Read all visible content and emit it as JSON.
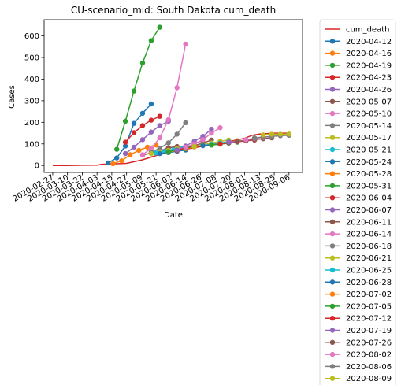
{
  "chart_data": {
    "type": "line",
    "title": "CU-scenario_mid: South Dakota cum_death",
    "xlabel": "Date",
    "ylabel": "Cases",
    "x_range": [
      "2020-02-20",
      "2020-09-17"
    ],
    "ylim": [
      -32,
      675
    ],
    "yticks": [
      0,
      100,
      200,
      300,
      400,
      500,
      600
    ],
    "xticks": [
      "2020-02-27",
      "2020-03-10",
      "2020-03-22",
      "2020-04-03",
      "2020-04-15",
      "2020-04-27",
      "2020-05-09",
      "2020-05-21",
      "2020-06-02",
      "2020-06-14",
      "2020-06-26",
      "2020-07-08",
      "2020-07-20",
      "2020-08-01",
      "2020-08-13",
      "2020-08-25",
      "2020-09-06"
    ],
    "grid": false,
    "legend_position": "outside-right",
    "series": [
      {
        "name": "cum_death",
        "color": "#d62728",
        "marker": false,
        "points": [
          [
            "2020-02-27",
            0
          ],
          [
            "2020-03-10",
            0
          ],
          [
            "2020-03-22",
            1
          ],
          [
            "2020-04-03",
            2
          ],
          [
            "2020-04-07",
            6
          ],
          [
            "2020-04-15",
            7
          ],
          [
            "2020-04-27",
            10
          ],
          [
            "2020-05-09",
            25
          ],
          [
            "2020-05-21",
            46
          ],
          [
            "2020-06-02",
            63
          ],
          [
            "2020-06-14",
            75
          ],
          [
            "2020-06-26",
            87
          ],
          [
            "2020-07-08",
            99
          ],
          [
            "2020-07-20",
            112
          ],
          [
            "2020-08-01",
            126
          ],
          [
            "2020-08-07",
            140
          ],
          [
            "2020-08-13",
            146
          ],
          [
            "2020-08-25",
            150
          ],
          [
            "2020-09-06",
            150
          ]
        ]
      },
      {
        "name": "2020-04-12",
        "color": "#1f77b4",
        "marker": true,
        "points": [
          [
            "2020-04-12",
            12
          ],
          [
            "2020-04-19",
            35
          ],
          [
            "2020-04-26",
            90
          ],
          [
            "2020-05-03",
            195
          ],
          [
            "2020-05-10",
            242
          ],
          [
            "2020-05-17",
            285
          ]
        ]
      },
      {
        "name": "2020-04-16",
        "color": "#ff7f0e",
        "marker": true,
        "points": [
          [
            "2020-04-16",
            8
          ],
          [
            "2020-04-23",
            22
          ],
          [
            "2020-04-30",
            50
          ],
          [
            "2020-05-07",
            70
          ],
          [
            "2020-05-14",
            85
          ],
          [
            "2020-05-21",
            95
          ]
        ]
      },
      {
        "name": "2020-04-19",
        "color": "#2ca02c",
        "marker": true,
        "points": [
          [
            "2020-04-19",
            75
          ],
          [
            "2020-04-26",
            205
          ],
          [
            "2020-05-03",
            345
          ],
          [
            "2020-05-10",
            475
          ],
          [
            "2020-05-17",
            578
          ],
          [
            "2020-05-24",
            640
          ]
        ]
      },
      {
        "name": "2020-04-23",
        "color": "#d62728",
        "marker": true,
        "points": [
          [
            "2020-04-26",
            108
          ],
          [
            "2020-05-03",
            152
          ],
          [
            "2020-05-10",
            185
          ],
          [
            "2020-05-17",
            210
          ],
          [
            "2020-05-24",
            228
          ]
        ]
      },
      {
        "name": "2020-04-26",
        "color": "#9467bd",
        "marker": true,
        "points": [
          [
            "2020-04-26",
            55
          ],
          [
            "2020-05-03",
            85
          ],
          [
            "2020-05-10",
            120
          ],
          [
            "2020-05-17",
            155
          ],
          [
            "2020-05-24",
            185
          ],
          [
            "2020-05-31",
            205
          ]
        ]
      },
      {
        "name": "2020-05-07",
        "color": "#8c564b",
        "marker": true,
        "points": [
          [
            "2020-05-10",
            48
          ],
          [
            "2020-05-17",
            58
          ],
          [
            "2020-05-24",
            68
          ],
          [
            "2020-05-31",
            82
          ],
          [
            "2020-06-07",
            88
          ]
        ]
      },
      {
        "name": "2020-05-10",
        "color": "#e377c2",
        "marker": true,
        "points": [
          [
            "2020-05-10",
            50
          ],
          [
            "2020-05-17",
            80
          ],
          [
            "2020-05-24",
            128
          ],
          [
            "2020-05-31",
            212
          ],
          [
            "2020-06-07",
            360
          ],
          [
            "2020-06-14",
            562
          ]
        ]
      },
      {
        "name": "2020-05-14",
        "color": "#7f7f7f",
        "marker": true,
        "points": [
          [
            "2020-05-17",
            62
          ],
          [
            "2020-05-24",
            80
          ],
          [
            "2020-05-31",
            105
          ],
          [
            "2020-06-07",
            145
          ],
          [
            "2020-06-14",
            198
          ]
        ]
      },
      {
        "name": "2020-05-17",
        "color": "#bcbd22",
        "marker": true,
        "points": [
          [
            "2020-05-17",
            55
          ],
          [
            "2020-05-24",
            62
          ],
          [
            "2020-05-31",
            70
          ],
          [
            "2020-06-07",
            78
          ],
          [
            "2020-06-14",
            85
          ]
        ]
      },
      {
        "name": "2020-05-21",
        "color": "#17becf",
        "marker": true,
        "points": [
          [
            "2020-05-21",
            58
          ],
          [
            "2020-05-28",
            65
          ],
          [
            "2020-06-04",
            72
          ],
          [
            "2020-06-11",
            78
          ]
        ]
      },
      {
        "name": "2020-05-24",
        "color": "#1f77b4",
        "marker": true,
        "points": [
          [
            "2020-05-24",
            55
          ],
          [
            "2020-05-31",
            60
          ],
          [
            "2020-06-07",
            66
          ],
          [
            "2020-06-14",
            72
          ]
        ]
      },
      {
        "name": "2020-05-28",
        "color": "#ff7f0e",
        "marker": true,
        "points": [
          [
            "2020-05-31",
            62
          ],
          [
            "2020-06-07",
            70
          ],
          [
            "2020-06-14",
            78
          ],
          [
            "2020-06-21",
            86
          ]
        ]
      },
      {
        "name": "2020-05-31",
        "color": "#2ca02c",
        "marker": true,
        "points": [
          [
            "2020-05-31",
            64
          ],
          [
            "2020-06-07",
            72
          ],
          [
            "2020-06-14",
            80
          ],
          [
            "2020-06-21",
            90
          ]
        ]
      },
      {
        "name": "2020-06-04",
        "color": "#d62728",
        "marker": true,
        "points": [
          [
            "2020-06-07",
            70
          ],
          [
            "2020-06-14",
            82
          ],
          [
            "2020-06-21",
            100
          ],
          [
            "2020-06-28",
            118
          ]
        ]
      },
      {
        "name": "2020-06-07",
        "color": "#9467bd",
        "marker": true,
        "points": [
          [
            "2020-06-07",
            72
          ],
          [
            "2020-06-14",
            90
          ],
          [
            "2020-06-21",
            112
          ],
          [
            "2020-06-28",
            135
          ],
          [
            "2020-07-05",
            168
          ]
        ]
      },
      {
        "name": "2020-06-11",
        "color": "#8c564b",
        "marker": true,
        "points": [
          [
            "2020-06-14",
            82
          ],
          [
            "2020-06-21",
            92
          ],
          [
            "2020-06-28",
            104
          ],
          [
            "2020-07-05",
            118
          ]
        ]
      },
      {
        "name": "2020-06-14",
        "color": "#e377c2",
        "marker": true,
        "points": [
          [
            "2020-06-14",
            85
          ],
          [
            "2020-06-21",
            100
          ],
          [
            "2020-06-28",
            120
          ],
          [
            "2020-07-05",
            150
          ],
          [
            "2020-07-12",
            175
          ]
        ]
      },
      {
        "name": "2020-06-18",
        "color": "#7f7f7f",
        "marker": true,
        "points": [
          [
            "2020-06-21",
            88
          ],
          [
            "2020-06-28",
            96
          ],
          [
            "2020-07-05",
            104
          ],
          [
            "2020-07-12",
            110
          ]
        ]
      },
      {
        "name": "2020-06-21",
        "color": "#bcbd22",
        "marker": true,
        "points": [
          [
            "2020-06-21",
            88
          ],
          [
            "2020-06-28",
            96
          ],
          [
            "2020-07-05",
            104
          ],
          [
            "2020-07-12",
            112
          ],
          [
            "2020-07-19",
            118
          ]
        ]
      },
      {
        "name": "2020-06-25",
        "color": "#17becf",
        "marker": true,
        "points": [
          [
            "2020-06-28",
            92
          ],
          [
            "2020-07-05",
            98
          ],
          [
            "2020-07-12",
            104
          ],
          [
            "2020-07-19",
            110
          ]
        ]
      },
      {
        "name": "2020-06-28",
        "color": "#1f77b4",
        "marker": true,
        "points": [
          [
            "2020-06-28",
            92
          ],
          [
            "2020-07-05",
            96
          ],
          [
            "2020-07-12",
            100
          ],
          [
            "2020-07-19",
            104
          ]
        ]
      },
      {
        "name": "2020-07-02",
        "color": "#ff7f0e",
        "marker": true,
        "points": [
          [
            "2020-07-05",
            95
          ],
          [
            "2020-07-12",
            100
          ],
          [
            "2020-07-19",
            108
          ],
          [
            "2020-07-26",
            115
          ]
        ]
      },
      {
        "name": "2020-07-05",
        "color": "#2ca02c",
        "marker": true,
        "points": [
          [
            "2020-07-05",
            95
          ],
          [
            "2020-07-12",
            99
          ],
          [
            "2020-07-19",
            104
          ],
          [
            "2020-07-26",
            108
          ]
        ]
      },
      {
        "name": "2020-07-12",
        "color": "#d62728",
        "marker": true,
        "points": [
          [
            "2020-07-12",
            100
          ],
          [
            "2020-07-19",
            106
          ],
          [
            "2020-07-26",
            110
          ],
          [
            "2020-08-02",
            114
          ],
          [
            "2020-08-09",
            118
          ]
        ]
      },
      {
        "name": "2020-07-19",
        "color": "#9467bd",
        "marker": true,
        "points": [
          [
            "2020-07-19",
            108
          ],
          [
            "2020-07-26",
            112
          ],
          [
            "2020-08-02",
            116
          ],
          [
            "2020-08-09",
            120
          ]
        ]
      },
      {
        "name": "2020-07-26",
        "color": "#8c564b",
        "marker": true,
        "points": [
          [
            "2020-07-26",
            112
          ],
          [
            "2020-08-02",
            116
          ],
          [
            "2020-08-09",
            120
          ],
          [
            "2020-08-16",
            124
          ],
          [
            "2020-08-23",
            128
          ]
        ]
      },
      {
        "name": "2020-08-02",
        "color": "#e377c2",
        "marker": true,
        "points": [
          [
            "2020-08-02",
            120
          ],
          [
            "2020-08-09",
            126
          ],
          [
            "2020-08-16",
            130
          ],
          [
            "2020-08-23",
            134
          ]
        ]
      },
      {
        "name": "2020-08-06",
        "color": "#7f7f7f",
        "marker": true,
        "points": [
          [
            "2020-08-09",
            128
          ],
          [
            "2020-08-16",
            132
          ],
          [
            "2020-08-23",
            135
          ],
          [
            "2020-08-30",
            138
          ],
          [
            "2020-09-06",
            140
          ]
        ]
      },
      {
        "name": "2020-08-09",
        "color": "#bcbd22",
        "marker": true,
        "points": [
          [
            "2020-08-16",
            142
          ],
          [
            "2020-08-23",
            145
          ],
          [
            "2020-08-30",
            145
          ],
          [
            "2020-09-06",
            146
          ]
        ]
      }
    ]
  }
}
